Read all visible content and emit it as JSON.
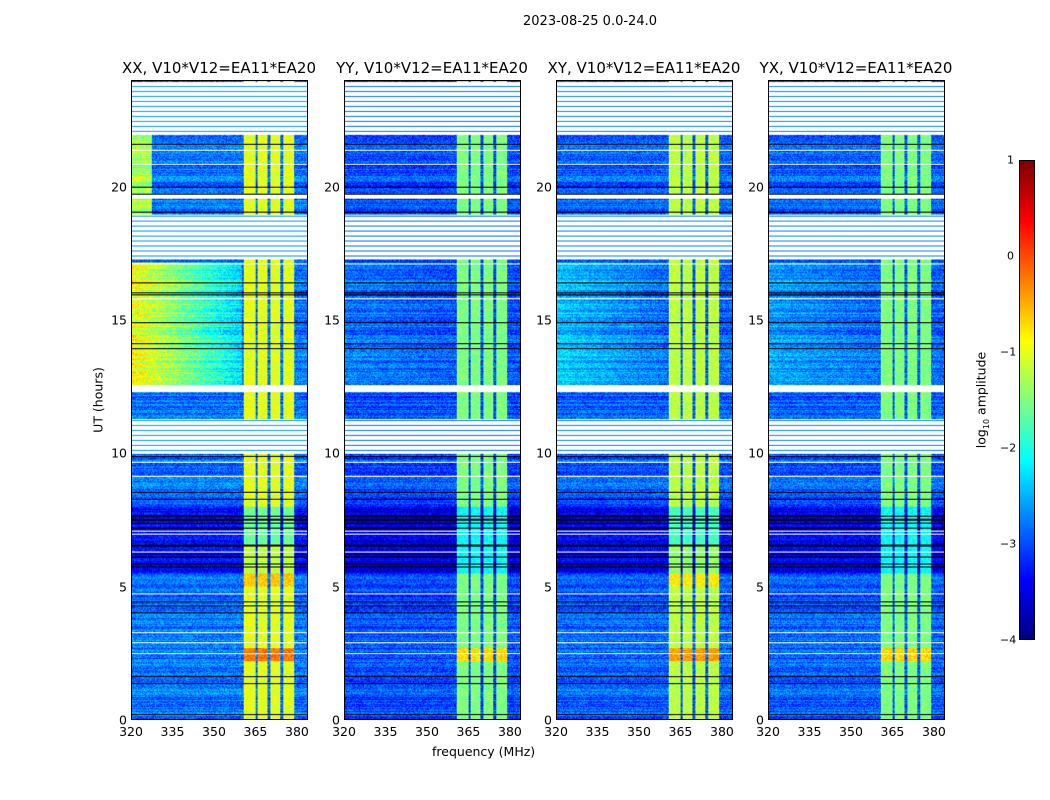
{
  "suptitle": "2023-08-25 0.0-24.0",
  "chart_data": {
    "type": "heatmap",
    "xlabel": "frequency (MHz)",
    "ylabel": "UT (hours)",
    "xlim": [
      320,
      384
    ],
    "ylim": [
      0,
      24
    ],
    "xticks": [
      "320",
      "335",
      "350",
      "365",
      "380"
    ],
    "xtick_values": [
      320,
      335,
      350,
      365,
      380
    ],
    "yticks": [
      "0",
      "5",
      "10",
      "15",
      "20"
    ],
    "ytick_values": [
      0,
      5,
      10,
      15,
      20
    ],
    "colorbar": {
      "label": "log10 amplitude",
      "label_main": "log",
      "label_sub": "10",
      "label_rest": " amplitude",
      "range": [
        -4,
        1
      ],
      "ticks": [
        "1",
        "0",
        "−1",
        "−2",
        "−3",
        "−4"
      ],
      "tick_values": [
        1,
        0,
        -1,
        -2,
        -3,
        -4
      ],
      "colormap": "jet"
    },
    "panels": [
      {
        "title": "XX, V10*V12=EA11*EA20",
        "base_level": -2.8,
        "band_level": -1.0,
        "lowfreq_excess_12_17h": 1.6
      },
      {
        "title": "YY, V10*V12=EA11*EA20",
        "base_level": -3.0,
        "band_level": -1.5,
        "lowfreq_excess_12_17h": 0.2
      },
      {
        "title": "XY, V10*V12=EA11*EA20",
        "base_level": -2.9,
        "band_level": -1.2,
        "lowfreq_excess_12_17h": 0.5
      },
      {
        "title": "YX, V10*V12=EA11*EA20",
        "base_level": -2.9,
        "band_level": -1.5,
        "lowfreq_excess_12_17h": 0.3
      }
    ],
    "rfi_bands_MHz": [
      [
        360.5,
        365
      ],
      [
        365.8,
        369.5
      ],
      [
        370.3,
        374.2
      ],
      [
        375,
        379
      ]
    ],
    "flagged_hours": [
      [
        22.0,
        24.0
      ],
      [
        17.3,
        19.0
      ],
      [
        10.0,
        11.3
      ],
      [
        12.3,
        12.6
      ],
      [
        19.6,
        19.75
      ]
    ],
    "dark_hours": [
      [
        5.5,
        8.0
      ]
    ]
  }
}
